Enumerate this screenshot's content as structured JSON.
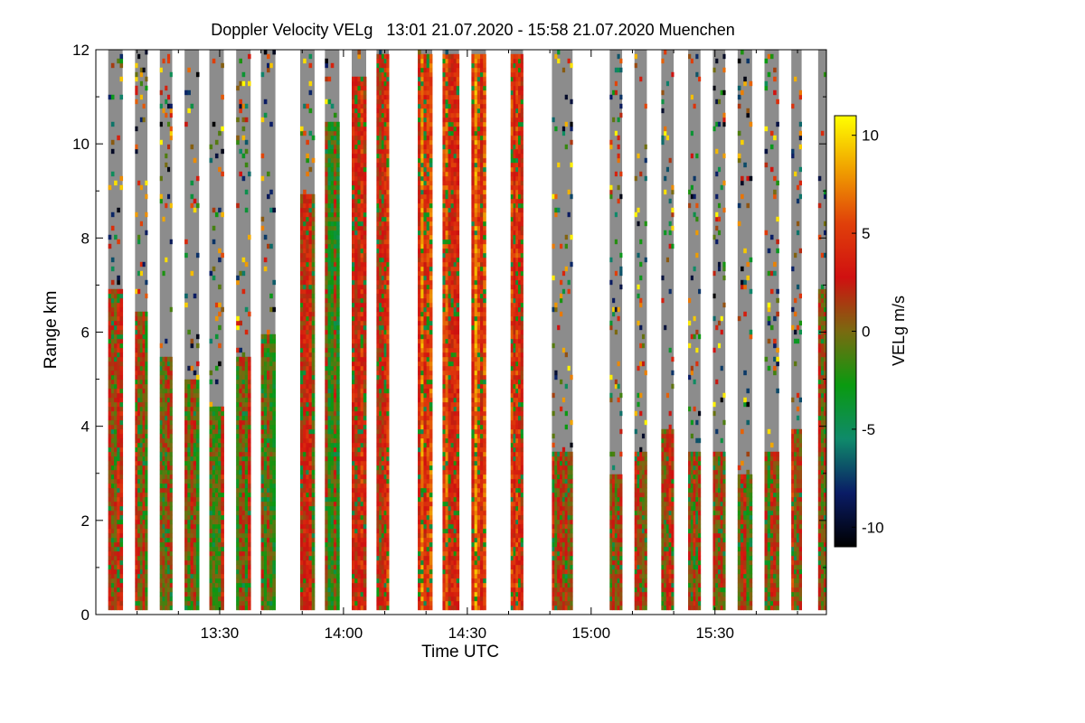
{
  "chart_data": {
    "type": "heatmap",
    "title": "Doppler Velocity VELg   13:01 21.07.2020 - 15:58 21.07.2020 Muenchen",
    "xlabel": "Time UTC",
    "ylabel": "Range km",
    "x_ticks": [
      {
        "minutes": 30,
        "label": "13:30"
      },
      {
        "minutes": 60,
        "label": "14:00"
      },
      {
        "minutes": 90,
        "label": "14:30"
      },
      {
        "minutes": 120,
        "label": "15:00"
      },
      {
        "minutes": 150,
        "label": "15:30"
      }
    ],
    "x_minor_ticks_minutes": [
      10,
      20,
      40,
      50,
      70,
      80,
      100,
      110,
      130,
      140,
      160,
      170
    ],
    "x_range_minutes": [
      0,
      177
    ],
    "x_start_time": "13:01",
    "y_ticks": [
      {
        "value": 0,
        "label": "0"
      },
      {
        "value": 2,
        "label": "2"
      },
      {
        "value": 4,
        "label": "4"
      },
      {
        "value": 6,
        "label": "6"
      },
      {
        "value": 8,
        "label": "8"
      },
      {
        "value": 10,
        "label": "10"
      },
      {
        "value": 12,
        "label": "12"
      }
    ],
    "y_range": [
      0,
      12
    ],
    "colorbar": {
      "label": "VELg m/s",
      "range": [
        -11,
        11
      ],
      "ticks": [
        {
          "value": 10,
          "label": "10"
        },
        {
          "value": 5,
          "label": "5"
        },
        {
          "value": 0,
          "label": "0"
        },
        {
          "value": -5,
          "label": "-5"
        },
        {
          "value": -10,
          "label": "-10"
        }
      ],
      "stops": [
        "#000000",
        "#0a1c66",
        "#0f8a6a",
        "#0a9a10",
        "#7a6a10",
        "#d01010",
        "#e0400a",
        "#f0a000",
        "#ffff00"
      ]
    },
    "scans": [
      {
        "start_min": 3.0,
        "end_min": 6.5,
        "signal_top_km": 7.0,
        "dominant_velocity": 1.5
      },
      {
        "start_min": 9.5,
        "end_min": 12.5,
        "signal_top_km": 6.5,
        "dominant_velocity": 1.2
      },
      {
        "start_min": 15.5,
        "end_min": 18.5,
        "signal_top_km": 5.5,
        "dominant_velocity": 0.8
      },
      {
        "start_min": 21.5,
        "end_min": 25.0,
        "signal_top_km": 5.0,
        "dominant_velocity": 0.5
      },
      {
        "start_min": 27.5,
        "end_min": 31.0,
        "signal_top_km": 4.5,
        "dominant_velocity": 0.8
      },
      {
        "start_min": 34.0,
        "end_min": 37.5,
        "signal_top_km": 5.5,
        "dominant_velocity": 0.5
      },
      {
        "start_min": 40.0,
        "end_min": 43.5,
        "signal_top_km": 6.0,
        "dominant_velocity": 0.2
      },
      {
        "start_min": 49.5,
        "end_min": 53.0,
        "signal_top_km": 9.0,
        "dominant_velocity": 1.5
      },
      {
        "start_min": 55.5,
        "end_min": 59.0,
        "signal_top_km": 10.5,
        "dominant_velocity": -1.0
      },
      {
        "start_min": 62.0,
        "end_min": 65.5,
        "signal_top_km": 11.5,
        "dominant_velocity": 4.0
      },
      {
        "start_min": 68.0,
        "end_min": 71.0,
        "signal_top_km": 12.0,
        "dominant_velocity": 3.0
      },
      {
        "start_min": 78.0,
        "end_min": 81.5,
        "signal_top_km": 12.0,
        "dominant_velocity": 6.0
      },
      {
        "start_min": 84.0,
        "end_min": 88.0,
        "signal_top_km": 12.0,
        "dominant_velocity": 4.0
      },
      {
        "start_min": 91.0,
        "end_min": 94.5,
        "signal_top_km": 12.0,
        "dominant_velocity": 5.5
      },
      {
        "start_min": 100.5,
        "end_min": 103.5,
        "signal_top_km": 12.0,
        "dominant_velocity": 3.5
      },
      {
        "start_min": 110.5,
        "end_min": 115.5,
        "signal_top_km": 3.5,
        "dominant_velocity": 2.0
      },
      {
        "start_min": 124.5,
        "end_min": 127.5,
        "signal_top_km": 3.0,
        "dominant_velocity": 1.5
      },
      {
        "start_min": 130.5,
        "end_min": 133.5,
        "signal_top_km": 3.5,
        "dominant_velocity": 1.5
      },
      {
        "start_min": 137.0,
        "end_min": 140.0,
        "signal_top_km": 4.0,
        "dominant_velocity": 1.5
      },
      {
        "start_min": 143.5,
        "end_min": 146.5,
        "signal_top_km": 3.5,
        "dominant_velocity": 1.0
      },
      {
        "start_min": 149.5,
        "end_min": 152.5,
        "signal_top_km": 3.5,
        "dominant_velocity": 1.5
      },
      {
        "start_min": 155.5,
        "end_min": 159.0,
        "signal_top_km": 3.0,
        "dominant_velocity": 0.5
      },
      {
        "start_min": 162.0,
        "end_min": 165.5,
        "signal_top_km": 3.5,
        "dominant_velocity": 0.5
      },
      {
        "start_min": 168.5,
        "end_min": 171.0,
        "signal_top_km": 4.0,
        "dominant_velocity": 2.0
      },
      {
        "start_min": 175.0,
        "end_min": 177.0,
        "signal_top_km": 7.0,
        "dominant_velocity": 1.5
      }
    ]
  }
}
